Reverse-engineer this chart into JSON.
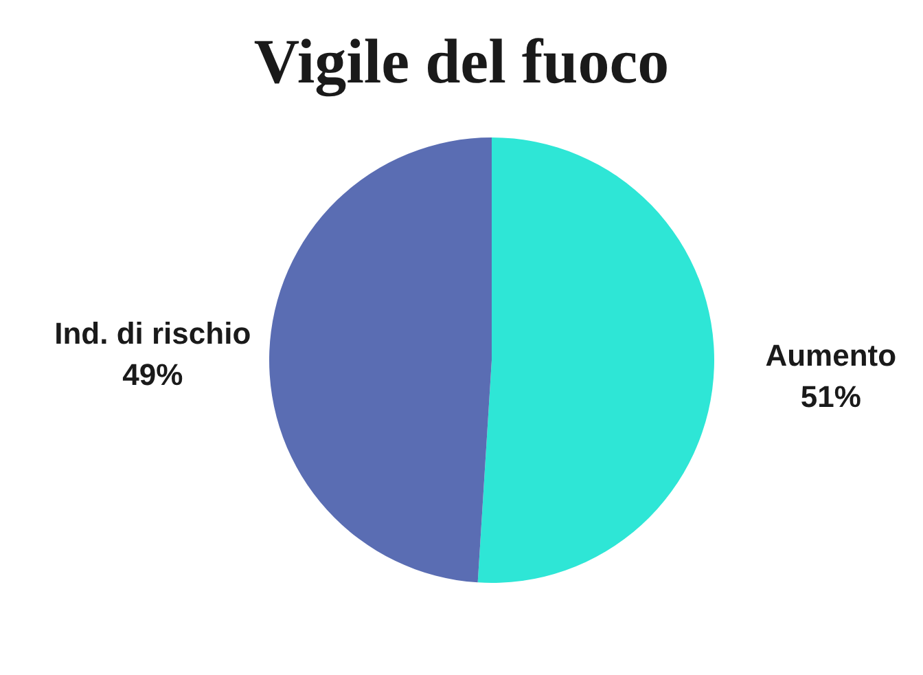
{
  "chart_data": {
    "type": "pie",
    "title": "Vigile del fuoco",
    "categories": [
      "Aumento",
      "Ind. di rischio"
    ],
    "values": [
      51,
      49
    ],
    "value_labels": [
      "51%",
      "49%"
    ],
    "colors": [
      "#2ee6d6",
      "#5a6db3"
    ],
    "legend": false
  }
}
